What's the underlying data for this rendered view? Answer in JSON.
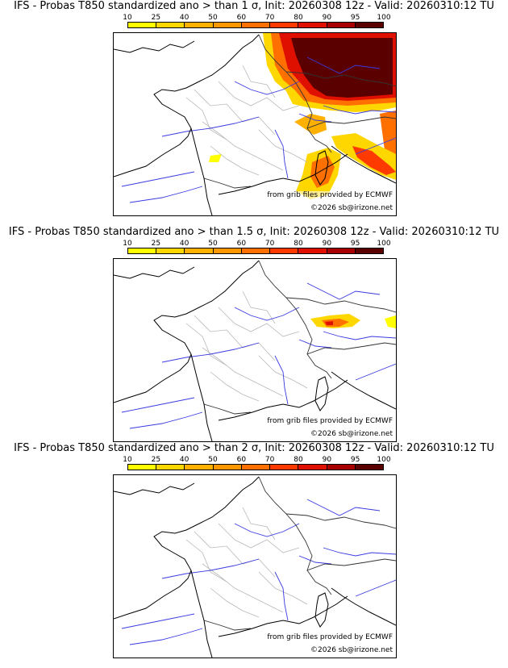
{
  "colorbar": {
    "ticks": [
      "10",
      "25",
      "40",
      "50",
      "60",
      "70",
      "80",
      "90",
      "95",
      "100"
    ],
    "colors": [
      "#ffff00",
      "#ffd700",
      "#ffb000",
      "#ff9800",
      "#ff7000",
      "#ff3a00",
      "#e01000",
      "#a80000",
      "#5a0000"
    ]
  },
  "credits": {
    "source": "from grib files provided by ECMWF",
    "copyright": "©2026 sb@irizone.net"
  },
  "panels": [
    {
      "title": "IFS - Probas T850  standardized ano > than 1 σ, Init: 20260308 12z - Valid: 20260310:12 TU",
      "threshold": "1 σ",
      "max_probability": 100
    },
    {
      "title": "IFS - Probas T850  standardized ano > than 1.5 σ, Init: 20260308 12z - Valid: 20260310:12 TU",
      "threshold": "1.5 σ",
      "max_probability": 90
    },
    {
      "title": "IFS - Probas T850  standardized ano > than 2 σ, Init: 20260308 12z - Valid: 20260310:12 TU",
      "threshold": "2 σ",
      "max_probability": 0
    }
  ]
}
